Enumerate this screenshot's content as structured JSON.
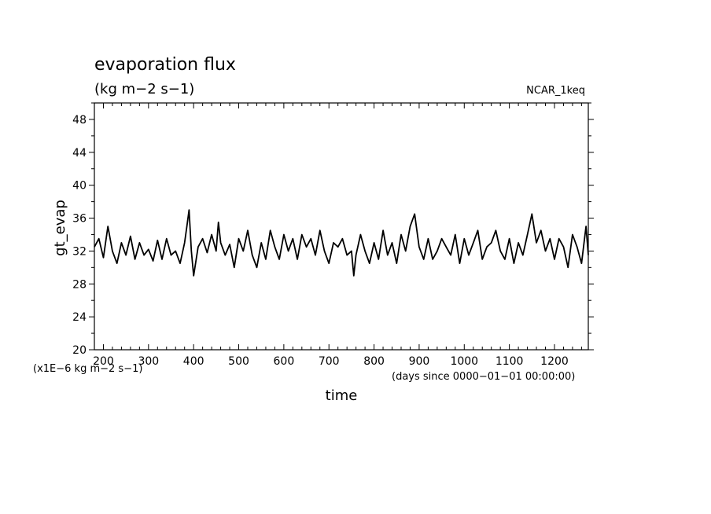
{
  "chart_data": {
    "type": "line",
    "title": "evaporation flux",
    "subtitle": "(kg m−2 s−1)",
    "experiment": "NCAR_1keq",
    "ylabel": "gt_evap",
    "xlabel": "time",
    "yscale_note": "(x1E−6 kg m−2 s−1)",
    "xunits_note": "(days since 0000−01−01 00:00:00)",
    "xlim": [
      180,
      1275
    ],
    "ylim": [
      20,
      50
    ],
    "xticks": [
      200,
      300,
      400,
      500,
      600,
      700,
      800,
      900,
      1000,
      1100,
      1200
    ],
    "yticks": [
      20,
      24,
      28,
      32,
      36,
      40,
      44,
      48
    ],
    "grid": false,
    "legend": "none",
    "line_color": "#000000",
    "series": [
      {
        "x": [
          180,
          190,
          200,
          210,
          220,
          230,
          240,
          250,
          260,
          270,
          280,
          290,
          300,
          310,
          320,
          330,
          340,
          350,
          360,
          370,
          380,
          385,
          390,
          395,
          400,
          410,
          420,
          430,
          440,
          450,
          455,
          460,
          470,
          480,
          490,
          500,
          510,
          520,
          530,
          540,
          550,
          560,
          570,
          580,
          590,
          600,
          610,
          620,
          630,
          640,
          650,
          660,
          670,
          680,
          690,
          700,
          710,
          720,
          730,
          740,
          750,
          755,
          760,
          770,
          780,
          790,
          800,
          810,
          820,
          830,
          840,
          850,
          860,
          870,
          880,
          890,
          900,
          910,
          920,
          930,
          940,
          950,
          960,
          970,
          980,
          990,
          1000,
          1010,
          1020,
          1030,
          1040,
          1050,
          1060,
          1070,
          1080,
          1090,
          1100,
          1110,
          1120,
          1130,
          1140,
          1150,
          1160,
          1170,
          1180,
          1190,
          1200,
          1210,
          1220,
          1230,
          1240,
          1250,
          1260,
          1270,
          1275
        ],
        "y": [
          32.5,
          33.5,
          31.2,
          35.0,
          32.0,
          30.5,
          33.0,
          31.5,
          33.8,
          31.0,
          33.0,
          31.5,
          32.2,
          30.8,
          33.3,
          31.0,
          33.5,
          31.5,
          32.0,
          30.5,
          33.0,
          35.0,
          37.0,
          32.0,
          29.0,
          32.5,
          33.5,
          31.8,
          34.0,
          32.0,
          35.5,
          33.0,
          31.5,
          32.8,
          30.0,
          33.5,
          32.0,
          34.5,
          31.5,
          30.0,
          33.0,
          31.0,
          34.5,
          32.5,
          31.0,
          34.0,
          32.0,
          33.5,
          31.0,
          34.0,
          32.5,
          33.5,
          31.5,
          34.5,
          32.0,
          30.5,
          33.0,
          32.5,
          33.5,
          31.5,
          32.0,
          29.0,
          31.5,
          34.0,
          32.0,
          30.5,
          33.0,
          31.0,
          34.5,
          31.5,
          33.0,
          30.5,
          34.0,
          32.0,
          35.0,
          36.5,
          32.5,
          31.0,
          33.5,
          31.0,
          32.0,
          33.5,
          32.5,
          31.5,
          34.0,
          30.5,
          33.5,
          31.5,
          33.0,
          34.5,
          31.0,
          32.5,
          33.0,
          34.5,
          32.0,
          31.0,
          33.5,
          30.5,
          33.0,
          31.5,
          34.0,
          36.5,
          33.0,
          34.5,
          32.0,
          33.5,
          31.0,
          33.5,
          32.5,
          30.0,
          34.0,
          32.5,
          30.5,
          35.0,
          31.5
        ]
      }
    ]
  }
}
